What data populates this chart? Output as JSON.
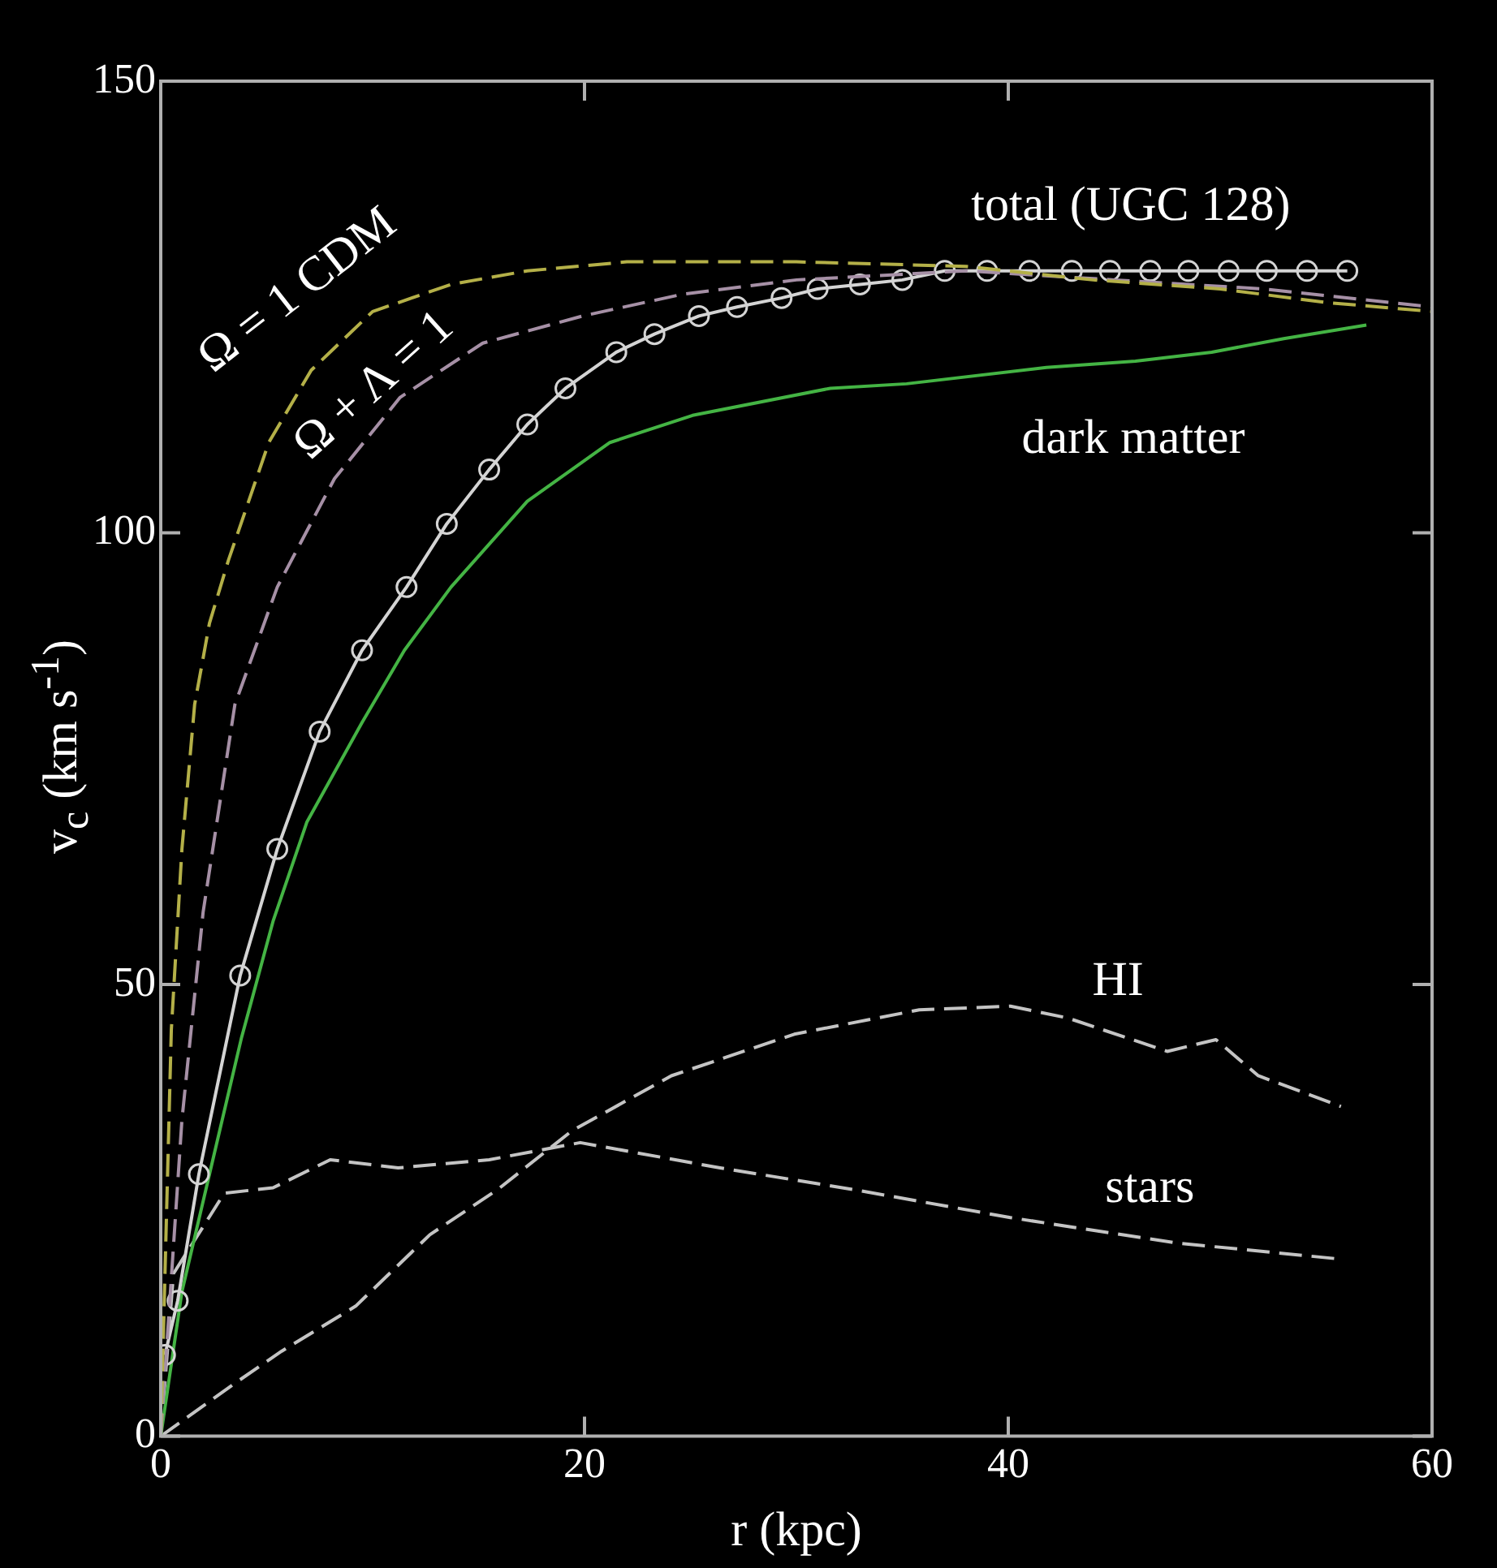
{
  "chart_data": {
    "type": "line",
    "xlabel": "r (kpc)",
    "ylabel": "v$_{c}$ (km s$^{-1}$)",
    "xlim": [
      0,
      60
    ],
    "xticks": [
      0,
      20,
      40,
      60
    ],
    "ylim": [
      0,
      150
    ],
    "yticks": [
      0,
      50,
      100,
      150
    ],
    "grid": false,
    "legend": false,
    "series": [
      {
        "name": "Ω = 1 CDM",
        "color": "#b4b048",
        "line_style": "dashed",
        "marker": "none",
        "x": [
          0,
          0.5,
          1,
          1.6,
          2.3,
          3.2,
          5.1,
          7.1,
          10,
          13.7,
          17.3,
          22,
          30,
          38,
          44,
          50,
          55,
          60
        ],
        "values": [
          0,
          45,
          65,
          81,
          90,
          97,
          110,
          118,
          124.5,
          127.5,
          129,
          130,
          130,
          129.5,
          128,
          127,
          125.5,
          124.5
        ]
      },
      {
        "name": "Ω + Λ = 1",
        "color": "#a690a6",
        "line_style": "dashed",
        "marker": "none",
        "x": [
          0,
          1,
          2,
          3.5,
          5.5,
          8.2,
          11.3,
          15.2,
          19.9,
          24.6,
          30,
          38,
          45,
          52,
          60
        ],
        "values": [
          0,
          35,
          58,
          81,
          94,
          106,
          115,
          121,
          124,
          126.4,
          128,
          129,
          128,
          127,
          125
        ]
      },
      {
        "name": "total (UGC 128)",
        "color": "#d4d4d4",
        "line_style": "solid",
        "marker": "circle",
        "x": [
          0.2,
          0.8,
          1.8,
          3.75,
          5.5,
          7.5,
          9.5,
          11.6,
          13.5,
          15.5,
          17.3,
          19.1,
          21.5,
          23.3,
          25.4,
          27.2,
          29.3,
          31,
          33,
          35,
          37,
          39,
          41,
          43,
          44.8,
          46.7,
          48.5,
          50.4,
          52.2,
          54.1,
          56
        ],
        "values": [
          9,
          15,
          29,
          51,
          65,
          78,
          87,
          94,
          101,
          107,
          112,
          116,
          120,
          122,
          124,
          125,
          126,
          127,
          127.5,
          128,
          129,
          129,
          129,
          129,
          129,
          129,
          129,
          129,
          129,
          129,
          129
        ]
      },
      {
        "name": "dark matter",
        "color": "#44b444",
        "line_style": "solid",
        "marker": "none",
        "x": [
          0,
          1,
          2.3,
          3.8,
          5.3,
          6.9,
          9.5,
          11.5,
          13.7,
          17.3,
          21.2,
          25.1,
          31.6,
          35.2,
          41.8,
          46,
          49.6,
          53,
          56.9
        ],
        "values": [
          0,
          16,
          29,
          44,
          57,
          68,
          79,
          87,
          94,
          103.5,
          110,
          113,
          116,
          116.5,
          118.3,
          119,
          120,
          121.5,
          123
        ]
      },
      {
        "name": "HI",
        "color": "#c4c4c4",
        "line_style": "dashed",
        "marker": "none",
        "x": [
          0,
          3.4,
          5.7,
          9.2,
          12.7,
          15.9,
          19.4,
          24.1,
          29.9,
          35.8,
          40.1,
          42.8,
          47.5,
          49.8,
          51.8,
          55.7
        ],
        "values": [
          0,
          5.7,
          9.4,
          14.4,
          22.3,
          27.3,
          33.8,
          39.9,
          44.5,
          47.2,
          47.6,
          46.3,
          42.6,
          43.9,
          39.9,
          36.5
        ]
      },
      {
        "name": "stars",
        "color": "#c4c4c4",
        "line_style": "dashed",
        "marker": "none",
        "x": [
          0,
          0.6,
          3,
          5.3,
          8,
          11.2,
          15.5,
          19.8,
          26.4,
          32.7,
          40.1,
          47.9,
          55.7
        ],
        "values": [
          0,
          18,
          26.9,
          27.5,
          30.6,
          29.7,
          30.6,
          32.5,
          29.7,
          27.3,
          24.2,
          21.4,
          19.6
        ]
      }
    ]
  }
}
